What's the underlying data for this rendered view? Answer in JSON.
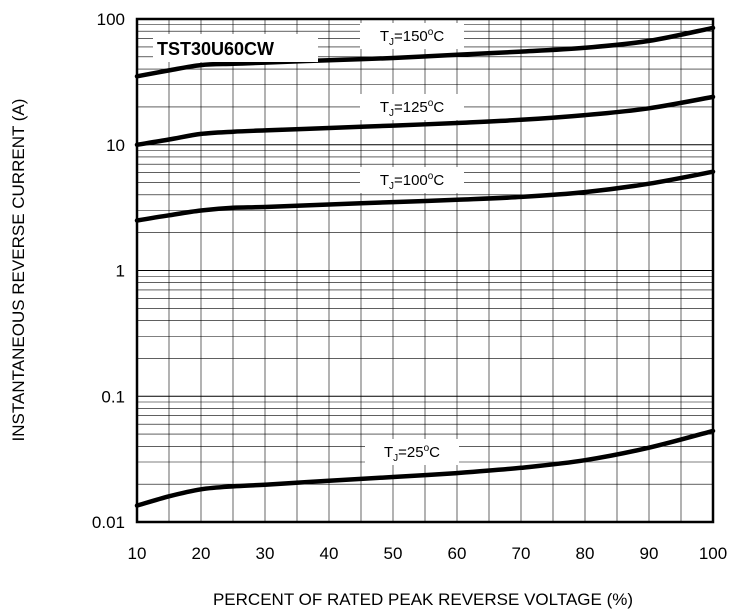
{
  "chart_data": {
    "type": "line",
    "xlabel": "PERCENT OF RATED PEAK REVERSE VOLTAGE (%)",
    "ylabel": "INSTANTANEOUS REVERSE CURRENT (A)",
    "xlim": [
      10,
      100
    ],
    "ylim": [
      0.01,
      100
    ],
    "yscale": "log",
    "grid": true,
    "x_ticks": [
      "10",
      "20",
      "30",
      "40",
      "50",
      "60",
      "70",
      "80",
      "90",
      "100"
    ],
    "y_ticks": [
      "0.01",
      "0.1",
      "1",
      "10",
      "100"
    ],
    "annotation": "TST30U60CW",
    "series": [
      {
        "name": "TJ=150°C",
        "label_main": "T",
        "label_sub": "J",
        "label_eq": "=150",
        "label_deg": "o",
        "label_unit": "C",
        "x": [
          10,
          15,
          20,
          25,
          30,
          40,
          50,
          60,
          70,
          80,
          90,
          100
        ],
        "values": [
          35,
          39,
          43,
          44,
          45,
          47,
          49,
          52,
          55,
          59,
          67,
          85
        ]
      },
      {
        "name": "TJ=125°C",
        "label_main": "T",
        "label_sub": "J",
        "label_eq": "=125",
        "label_deg": "o",
        "label_unit": "C",
        "x": [
          10,
          15,
          20,
          25,
          30,
          40,
          50,
          60,
          70,
          80,
          90,
          100
        ],
        "values": [
          10,
          11,
          12.2,
          12.7,
          13,
          13.6,
          14.2,
          14.9,
          15.8,
          17.2,
          19.5,
          24
        ]
      },
      {
        "name": "TJ=100°C",
        "label_main": "T",
        "label_sub": "J",
        "label_eq": "=100",
        "label_deg": "o",
        "label_unit": "C",
        "x": [
          10,
          15,
          20,
          25,
          30,
          40,
          50,
          60,
          70,
          80,
          90,
          100
        ],
        "values": [
          2.5,
          2.75,
          3.0,
          3.15,
          3.2,
          3.35,
          3.5,
          3.65,
          3.85,
          4.2,
          4.9,
          6.1
        ]
      },
      {
        "name": "TJ=25°C",
        "label_main": "T",
        "label_sub": "J",
        "label_eq": "=25",
        "label_deg": "o",
        "label_unit": "C",
        "x": [
          10,
          15,
          20,
          25,
          30,
          40,
          50,
          60,
          70,
          80,
          90,
          100
        ],
        "values": [
          0.0135,
          0.016,
          0.0182,
          0.0192,
          0.0198,
          0.0213,
          0.0228,
          0.0245,
          0.027,
          0.031,
          0.039,
          0.053
        ]
      }
    ]
  }
}
